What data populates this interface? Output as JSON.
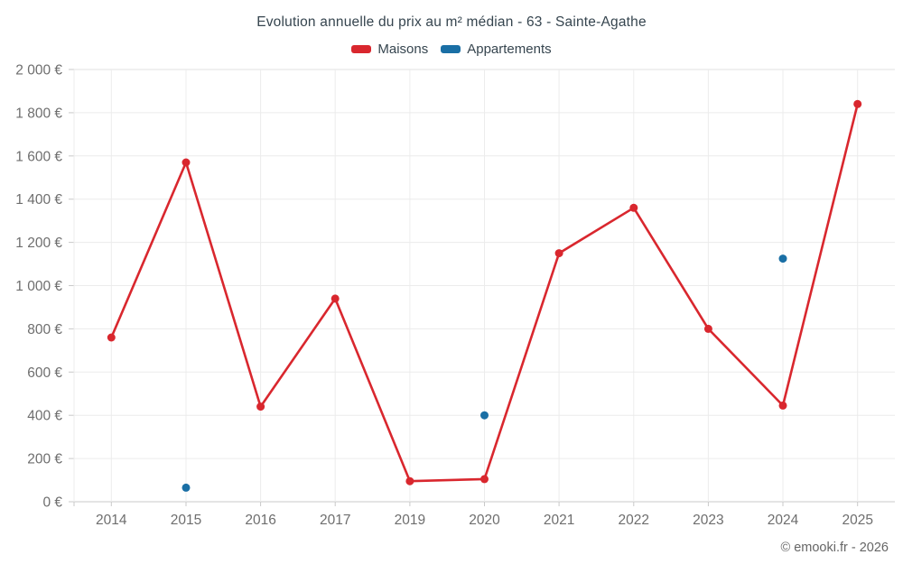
{
  "page": {
    "background": "#ffffff"
  },
  "chart_data": {
    "type": "line",
    "title": "Evolution annuelle du prix au m² médian - 63 - Sainte-Agathe",
    "categories": [
      "2014",
      "2015",
      "2016",
      "2017",
      "2019",
      "2020",
      "2021",
      "2022",
      "2023",
      "2024",
      "2025"
    ],
    "xlabel": "",
    "ylabel": "",
    "ylim": [
      0,
      2000
    ],
    "y_ticks": {
      "values": [
        0,
        200,
        400,
        600,
        800,
        1000,
        1200,
        1400,
        1600,
        1800,
        2000
      ],
      "labels": [
        "0 €",
        "200 €",
        "400 €",
        "600 €",
        "800 €",
        "1 000 €",
        "1 200 €",
        "1 400 €",
        "1 600 €",
        "1 800 €",
        "2 000 €"
      ]
    },
    "grid": true,
    "legend_position": "top",
    "series": [
      {
        "name": "Maisons",
        "type": "line",
        "color": "#d9272e",
        "values": [
          760,
          1570,
          440,
          940,
          95,
          105,
          1150,
          1360,
          800,
          445,
          1840
        ]
      },
      {
        "name": "Appartements",
        "type": "scatter",
        "color": "#1a6fa5",
        "values": [
          null,
          65,
          null,
          null,
          null,
          400,
          null,
          null,
          null,
          1125,
          null
        ]
      }
    ],
    "style": {
      "title_color": "#36454f",
      "axis_label_color": "#6e6e6e",
      "grid_color": "#ececec",
      "top_line_color": "#e0e0e0",
      "axis_line_color": "#c9c9c9",
      "marker_radius": 4.5,
      "line_width": 2.6
    }
  },
  "footer": {
    "watermark": "© emooki.fr - 2026"
  }
}
